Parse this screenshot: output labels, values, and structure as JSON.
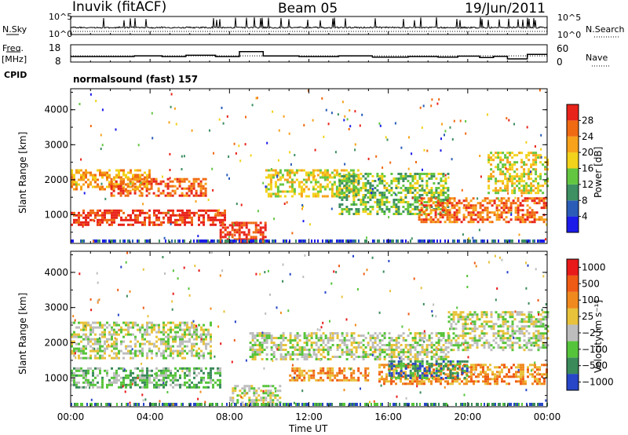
{
  "header": {
    "station": "Inuvik (fitACF)",
    "beam": "Beam 05",
    "date": "19/Jun/2011"
  },
  "side_labels": {
    "nsky": "N.Sky",
    "freq": "Freq.",
    "freq_unit": "[MHz]",
    "cpid": "CPID",
    "nsearch": "N.Search",
    "nave": "Nave"
  },
  "cpid_text": "normalsound (fast) 157",
  "chart_data": [
    {
      "type": "line",
      "panel": "noise",
      "left_ticks": [
        "10^5",
        "10^0"
      ],
      "right_ticks": [
        "10^5",
        "10^0"
      ],
      "series": [
        {
          "name": "N.Sky"
        },
        {
          "name": "N.Search"
        }
      ]
    },
    {
      "type": "line",
      "panel": "frequency",
      "left_ticks": [
        "18",
        "8"
      ],
      "right_ticks": [
        "60",
        "0"
      ],
      "x_hours": [
        0,
        3.2,
        4.6,
        5.8,
        7.3,
        8.5,
        9.7,
        11.5,
        13.5,
        15.2,
        17,
        18.5,
        19.5,
        20.6,
        21.3,
        22,
        23,
        24
      ],
      "freq_mhz": [
        11.2,
        11.6,
        11.2,
        11.9,
        11.2,
        14.0,
        11.5,
        11.2,
        11.6,
        10.8,
        11.2,
        10.8,
        11.4,
        10.6,
        11.3,
        9.8,
        12.4,
        12.4
      ],
      "series": [
        {
          "name": "Freq."
        },
        {
          "name": "Nave"
        }
      ]
    },
    {
      "type": "heatmap",
      "panel": "power",
      "ylabel": "Slant Range [km]",
      "yticks": [
        "1000",
        "2000",
        "3000",
        "4000"
      ],
      "ytick_values": [
        1000,
        2000,
        3000,
        4000
      ],
      "ylim": [
        180,
        4600
      ],
      "xlim": [
        0,
        24
      ],
      "colorbar_label": "Power [dB]",
      "colorbar_ticks": [
        "4",
        "8",
        "12",
        "16",
        "20",
        "24",
        "28"
      ],
      "colors": [
        "#1b1bea",
        "#2a5cb8",
        "#3e8f62",
        "#63c641",
        "#f2d21a",
        "#f7a21a",
        "#f06a12",
        "#e8231a"
      ],
      "echo_bands": [
        {
          "start": 0.0,
          "end": 4.0,
          "range_from": 1700,
          "range_to": 2300,
          "level": 5
        },
        {
          "start": 2.0,
          "end": 6.8,
          "range_from": 1550,
          "range_to": 2050,
          "level": 6
        },
        {
          "start": 0.0,
          "end": 7.8,
          "range_from": 700,
          "range_to": 1150,
          "level": 7
        },
        {
          "start": 7.5,
          "end": 9.8,
          "range_from": 250,
          "range_to": 800,
          "level": 7
        },
        {
          "start": 9.8,
          "end": 14.5,
          "range_from": 1500,
          "range_to": 2300,
          "level": 4
        },
        {
          "start": 13.5,
          "end": 19.0,
          "range_from": 1000,
          "range_to": 2200,
          "level": 3
        },
        {
          "start": 17.5,
          "end": 24.0,
          "range_from": 800,
          "range_to": 1500,
          "level": 6
        },
        {
          "start": 21.0,
          "end": 24.0,
          "range_from": 1600,
          "range_to": 2800,
          "level": 4
        }
      ]
    },
    {
      "type": "heatmap",
      "panel": "velocity",
      "ylabel": "Slant Range [km]",
      "yticks": [
        "1000",
        "2000",
        "3000",
        "4000"
      ],
      "ytick_values": [
        1000,
        2000,
        3000,
        4000
      ],
      "ylim": [
        180,
        4600
      ],
      "xlim": [
        0,
        24
      ],
      "xlabel": "Time UT",
      "xticks": [
        "00:00",
        "04:00",
        "08:00",
        "12:00",
        "16:00",
        "20:00",
        "00:00"
      ],
      "xtick_values": [
        0,
        4,
        8,
        12,
        16,
        20,
        24
      ],
      "colorbar_label": "Velocity [m s⁻¹]",
      "colorbar_ticks": [
        "1000",
        "500",
        "100",
        "25",
        "−25",
        "−100",
        "−500",
        "−1000"
      ],
      "colors": [
        "#2746c8",
        "#3a8a5a",
        "#56c43a",
        "#bdbdbd",
        "#e8c23a",
        "#f08a1e",
        "#ef5a14",
        "#e81a1a"
      ],
      "echo_bands": [
        {
          "start": 0.0,
          "end": 7.0,
          "range_from": 1550,
          "range_to": 2600,
          "level": 3
        },
        {
          "start": 0.0,
          "end": 7.5,
          "range_from": 750,
          "range_to": 1300,
          "level": 2
        },
        {
          "start": 8.0,
          "end": 10.5,
          "range_from": 200,
          "range_to": 800,
          "level": 3
        },
        {
          "start": 9.0,
          "end": 19.0,
          "range_from": 1500,
          "range_to": 2300,
          "level": 3
        },
        {
          "start": 11.0,
          "end": 15.0,
          "range_from": 900,
          "range_to": 1300,
          "level": 5
        },
        {
          "start": 15.5,
          "end": 24.0,
          "range_from": 800,
          "range_to": 1400,
          "level": 5
        },
        {
          "start": 16.0,
          "end": 20.0,
          "range_from": 1000,
          "range_to": 1500,
          "level": 1
        },
        {
          "start": 19.0,
          "end": 24.0,
          "range_from": 1800,
          "range_to": 2900,
          "level": 3
        }
      ]
    }
  ]
}
